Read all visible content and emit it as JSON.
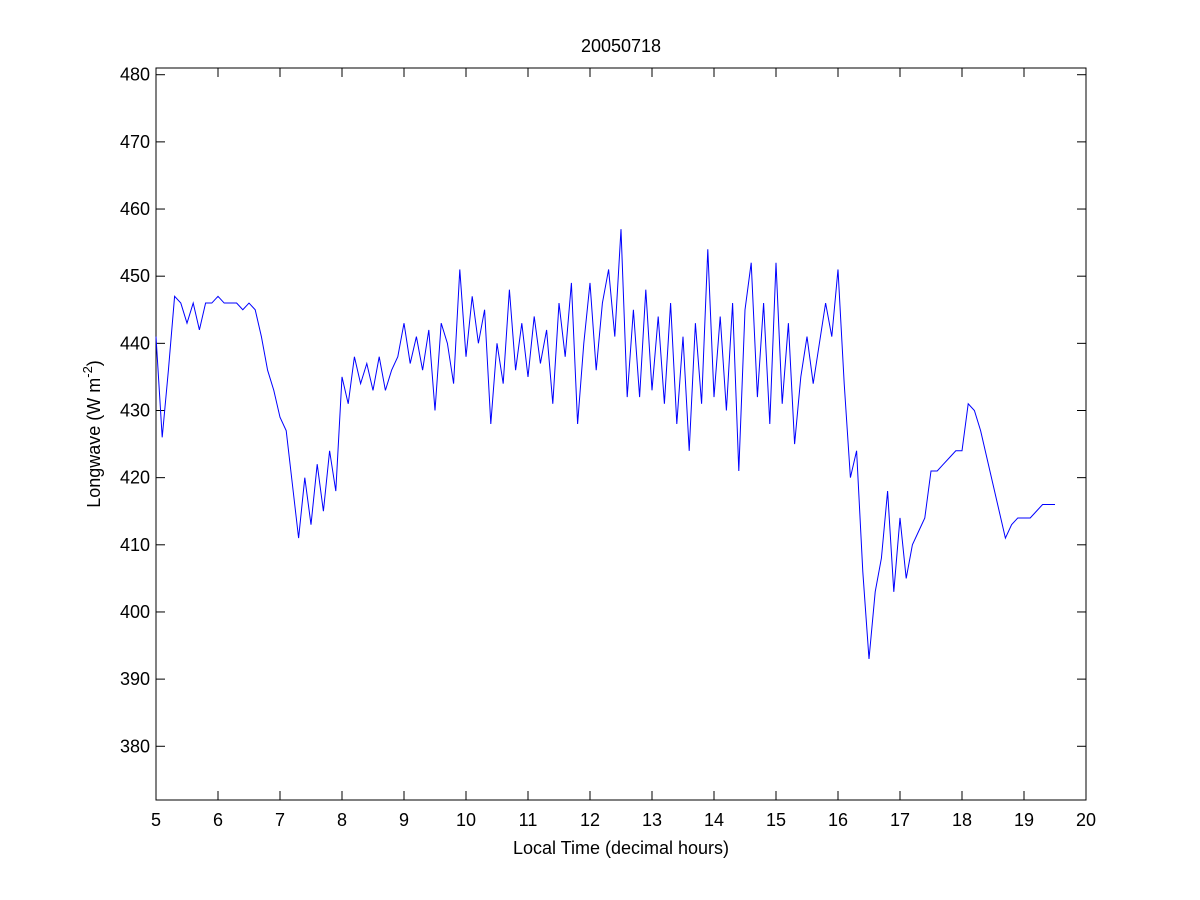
{
  "chart_data": {
    "type": "line",
    "title": "20050718",
    "xlabel": "Local Time (decimal hours)",
    "ylabel": [
      "Longwave (W m",
      "-2",
      ")"
    ],
    "color": "#0000ff",
    "xlim": [
      5,
      20
    ],
    "xticks": [
      5,
      6,
      7,
      8,
      9,
      10,
      11,
      12,
      13,
      14,
      15,
      16,
      17,
      18,
      19,
      20
    ],
    "ylim": [
      372,
      481
    ],
    "yticks": [
      380,
      390,
      400,
      410,
      420,
      430,
      440,
      450,
      460,
      470,
      480
    ],
    "grid": false,
    "x": [
      5.0,
      5.1,
      5.2,
      5.3,
      5.4,
      5.5,
      5.6,
      5.7,
      5.8,
      5.9,
      6.0,
      6.1,
      6.2,
      6.3,
      6.4,
      6.5,
      6.6,
      6.7,
      6.8,
      6.9,
      7.0,
      7.1,
      7.2,
      7.3,
      7.4,
      7.5,
      7.6,
      7.7,
      7.8,
      7.9,
      8.0,
      8.1,
      8.2,
      8.3,
      8.4,
      8.5,
      8.6,
      8.7,
      8.8,
      8.9,
      9.0,
      9.1,
      9.2,
      9.3,
      9.4,
      9.5,
      9.6,
      9.7,
      9.8,
      9.9,
      10.0,
      10.1,
      10.2,
      10.3,
      10.4,
      10.5,
      10.6,
      10.7,
      10.8,
      10.9,
      11.0,
      11.1,
      11.2,
      11.3,
      11.4,
      11.5,
      11.6,
      11.7,
      11.8,
      11.9,
      12.0,
      12.1,
      12.2,
      12.3,
      12.4,
      12.5,
      12.6,
      12.7,
      12.8,
      12.9,
      13.0,
      13.1,
      13.2,
      13.3,
      13.4,
      13.5,
      13.6,
      13.7,
      13.8,
      13.9,
      14.0,
      14.1,
      14.2,
      14.3,
      14.4,
      14.5,
      14.6,
      14.7,
      14.8,
      14.9,
      15.0,
      15.1,
      15.2,
      15.3,
      15.4,
      15.5,
      15.6,
      15.7,
      15.8,
      15.9,
      16.0,
      16.1,
      16.2,
      16.3,
      16.4,
      16.5,
      16.6,
      16.7,
      16.8,
      16.9,
      17.0,
      17.1,
      17.2,
      17.3,
      17.4,
      17.5,
      17.6,
      17.7,
      17.8,
      17.9,
      18.0,
      18.1,
      18.2,
      18.3,
      18.4,
      18.5,
      18.6,
      18.7,
      18.8,
      18.9,
      19.0,
      19.1,
      19.2,
      19.3,
      19.4,
      19.5
    ],
    "values": [
      441,
      426,
      436,
      447,
      446,
      443,
      446,
      442,
      446,
      446,
      447,
      446,
      446,
      446,
      445,
      446,
      445,
      441,
      436,
      433,
      429,
      427,
      419,
      411,
      420,
      413,
      422,
      415,
      424,
      418,
      435,
      431,
      438,
      434,
      437,
      433,
      438,
      433,
      436,
      438,
      443,
      437,
      441,
      436,
      442,
      430,
      443,
      440,
      434,
      451,
      438,
      447,
      440,
      445,
      428,
      440,
      434,
      448,
      436,
      443,
      435,
      444,
      437,
      442,
      431,
      446,
      438,
      449,
      428,
      440,
      449,
      436,
      446,
      451,
      441,
      457,
      432,
      445,
      432,
      448,
      433,
      444,
      431,
      446,
      428,
      441,
      424,
      443,
      431,
      454,
      432,
      444,
      430,
      446,
      421,
      445,
      452,
      432,
      446,
      428,
      452,
      431,
      443,
      425,
      435,
      441,
      434,
      440,
      446,
      441,
      451,
      434,
      420,
      424,
      406,
      393,
      403,
      408,
      418,
      403,
      414,
      405,
      410,
      412,
      414,
      421,
      421,
      422,
      423,
      424,
      424,
      431,
      430,
      427,
      423,
      419,
      415,
      411,
      413,
      414,
      414,
      414,
      415,
      416,
      416,
      416
    ]
  }
}
